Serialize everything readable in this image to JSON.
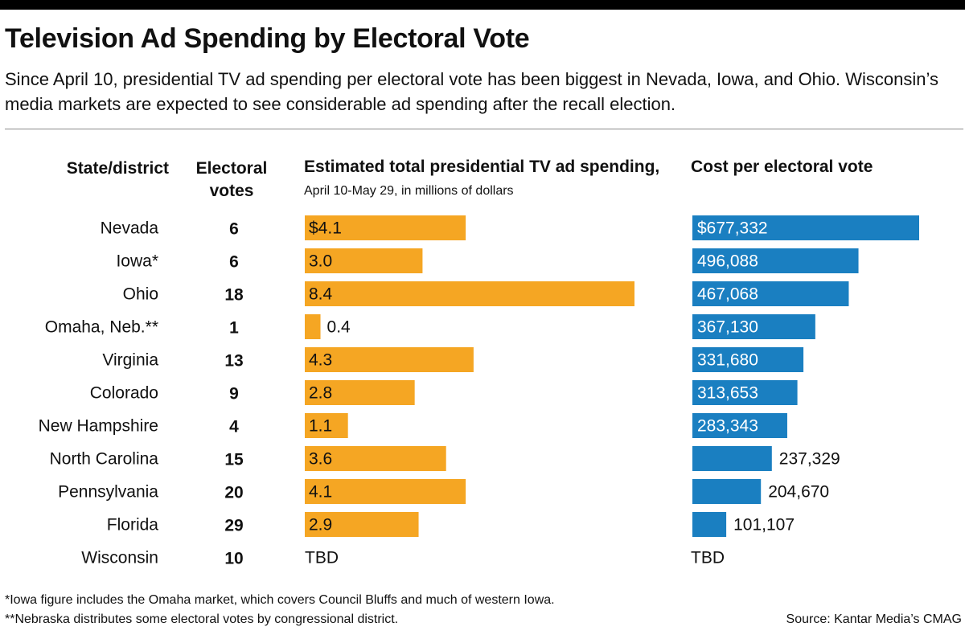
{
  "title": "Television Ad Spending by Electoral Vote",
  "subtitle": "Since April 10, presidential TV ad spending per electoral vote has been biggest in Nevada, Iowa, and Ohio. Wisconsin’s media markets are expected to see considerable ad spending after the recall election.",
  "headers": {
    "state": "State/district",
    "ev": "Electoral votes",
    "spend_main": "Estimated total presidential TV ad spending,",
    "spend_note": "April 10-May 29, in millions of dollars",
    "cost": "Cost per electoral vote"
  },
  "footnotes": [
    "*Iowa figure includes the Omaha market, which covers Council Bluffs and much of western Iowa.",
    "**Nebraska distributes some electoral votes by congressional district."
  ],
  "source": "Source: Kantar Media’s CMAG",
  "colors": {
    "spend": "#f5a623",
    "cost": "#1a7fc1"
  },
  "chart_data": {
    "type": "bar",
    "orientation": "horizontal",
    "categories": [
      "Nevada",
      "Iowa*",
      "Ohio",
      "Omaha, Neb.**",
      "Virginia",
      "Colorado",
      "New Hampshire",
      "North Carolina",
      "Pennsylvania",
      "Florida",
      "Wisconsin"
    ],
    "electoral_votes": [
      "6",
      "6",
      "18",
      "1",
      "13",
      "9",
      "4",
      "15",
      "20",
      "29",
      "10"
    ],
    "series": [
      {
        "name": "Estimated total presidential TV ad spending",
        "values": [
          4.1,
          3.0,
          8.4,
          0.4,
          4.3,
          2.8,
          1.1,
          3.6,
          4.1,
          2.9,
          null
        ],
        "labels": [
          "$4.1",
          "3.0",
          "8.4",
          "0.4",
          "4.3",
          "2.8",
          "1.1",
          "3.6",
          "4.1",
          "2.9",
          "TBD"
        ]
      },
      {
        "name": "Cost per electoral vote",
        "values": [
          677332,
          496088,
          467068,
          367130,
          331680,
          313653,
          283343,
          237329,
          204670,
          101107,
          null
        ],
        "labels": [
          "$677,332",
          "496,088",
          "467,068",
          "367,130",
          "331,680",
          "313,653",
          "283,343",
          "237,329",
          "204,670",
          "101,107",
          "TBD"
        ]
      }
    ]
  }
}
